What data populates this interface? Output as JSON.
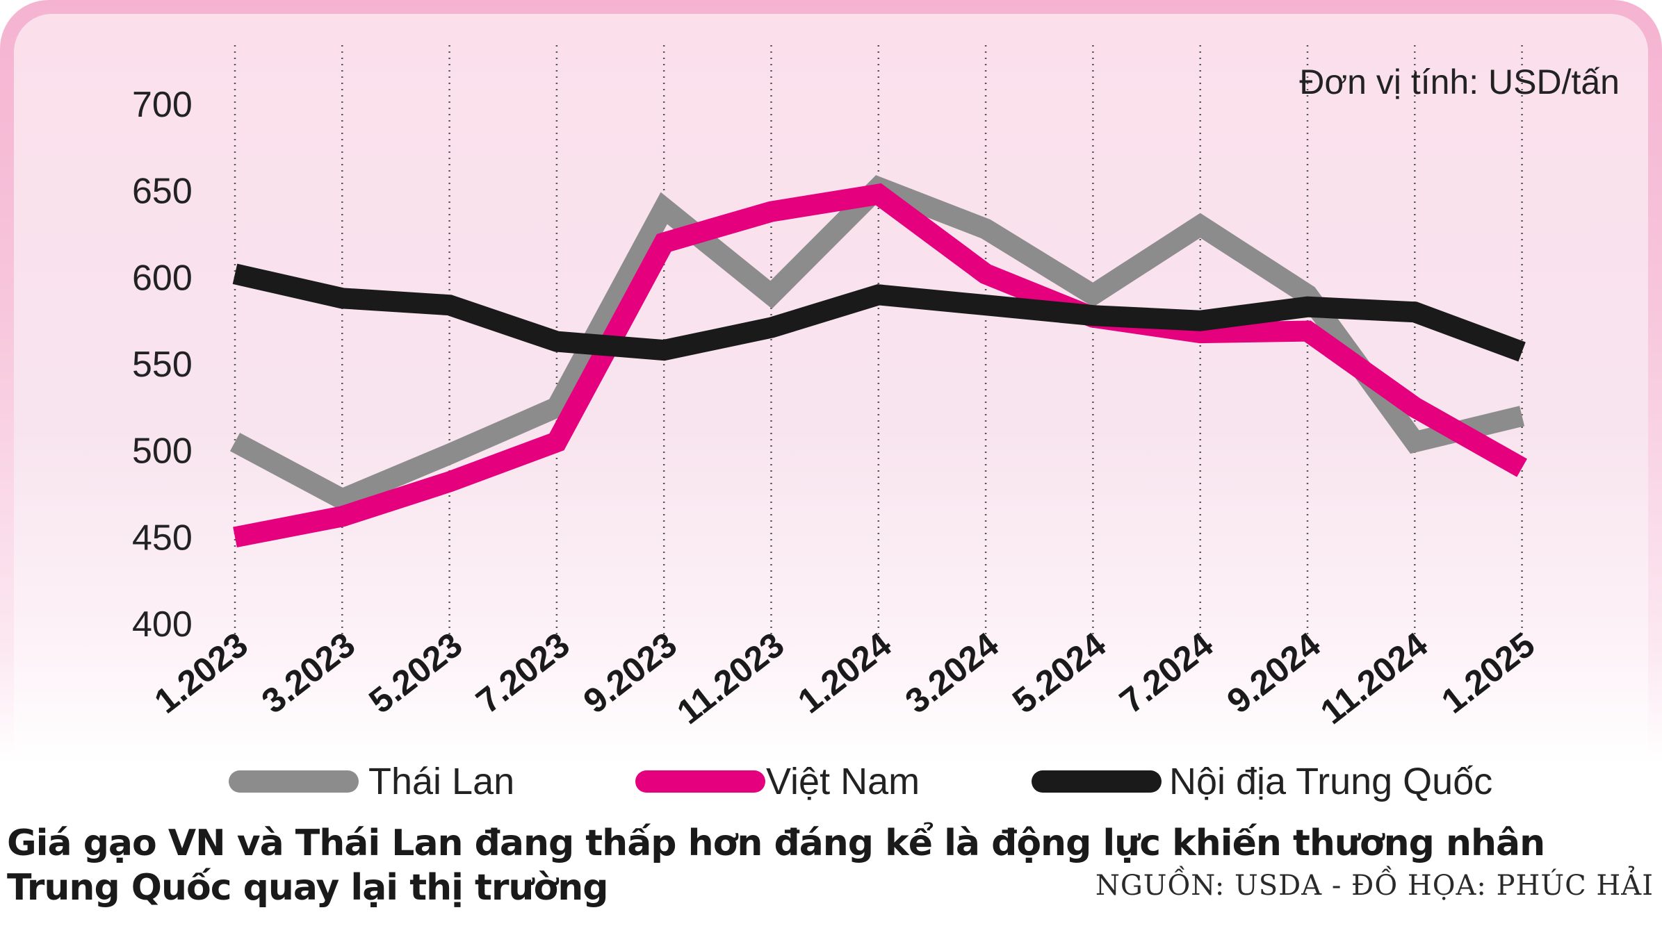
{
  "chart_data": {
    "type": "line",
    "unit_label": "Đơn vị tính: USD/tấn",
    "categories": [
      "1.2023",
      "3.2023",
      "5.2023",
      "7.2023",
      "9.2023",
      "11.2023",
      "1.2024",
      "3.2024",
      "5.2024",
      "7.2024",
      "9.2024",
      "11.2024",
      "1.2025"
    ],
    "y_ticks": [
      "700",
      "650",
      "600",
      "550",
      "500",
      "450",
      "400"
    ],
    "ylim": [
      400,
      700
    ],
    "grid": "vertical dotted lines at each category",
    "legend_position": "bottom",
    "series": [
      {
        "name": "Thái Lan",
        "color": "#8c8c8c",
        "values": [
          505,
          472,
          498,
          525,
          640,
          590,
          652,
          628,
          590,
          630,
          590,
          505,
          520
        ]
      },
      {
        "name": "Việt Nam",
        "color": "#e5007e",
        "values": [
          450,
          462,
          482,
          505,
          620,
          638,
          648,
          602,
          577,
          568,
          569,
          525,
          490
        ]
      },
      {
        "name": "Nội địa Trung Quốc",
        "color": "#1a1a1a",
        "values": [
          602,
          588,
          584,
          563,
          558,
          571,
          590,
          584,
          578,
          575,
          583,
          580,
          557
        ]
      }
    ]
  },
  "caption": "Giá gạo VN và Thái Lan đang thấp hơn đáng kể là động lực khiến thương nhân Trung Quốc quay lại thị trường",
  "source": "NGUỒN: USDA - ĐỒ HỌA: PHÚC HẢI"
}
